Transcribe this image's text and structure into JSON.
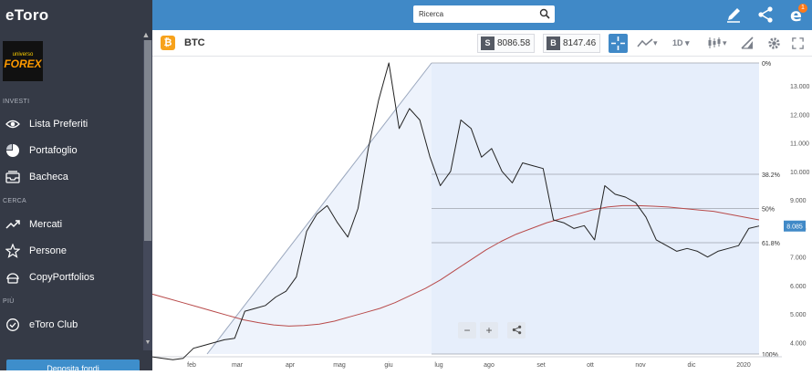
{
  "sidebar": {
    "logo": "eToro",
    "avatar_line1": "universo",
    "avatar_line2": "FOREX",
    "sections": {
      "invest": "INVESTI",
      "search": "CERCA",
      "more": "PIÙ"
    },
    "items": [
      {
        "label": "Lista Preferiti",
        "icon": "eye-icon"
      },
      {
        "label": "Portafoglio",
        "icon": "pie-chart-icon"
      },
      {
        "label": "Bacheca",
        "icon": "inbox-icon"
      },
      {
        "label": "Mercati",
        "icon": "trend-icon"
      },
      {
        "label": "Persone",
        "icon": "star-icon"
      },
      {
        "label": "CopyPortfolios",
        "icon": "copy-portfolio-icon"
      },
      {
        "label": "eToro Club",
        "icon": "club-icon"
      }
    ],
    "open_account_label": "Deposita fondi"
  },
  "topbar": {
    "search_placeholder": "Ricerca",
    "notification_count": "1"
  },
  "instrument": {
    "symbol": "BTC",
    "sell_label": "S",
    "sell_price": "8086.58",
    "buy_label": "B",
    "buy_price": "8147.46",
    "timeframe": "1D"
  },
  "chart_data": {
    "type": "line",
    "x_ticks": [
      "feb",
      "mar",
      "apr",
      "mag",
      "giu",
      "lug",
      "ago",
      "set",
      "ott",
      "nov",
      "dic",
      "2020"
    ],
    "y_ticks": [
      "13.000",
      "12.000",
      "11.000",
      "10.000",
      "9.000",
      "8.000",
      "7.000",
      "6.000",
      "5.000",
      "4.000"
    ],
    "ylim": [
      3600,
      13800
    ],
    "current_price_label": "8.085",
    "fib_levels": [
      {
        "label": "0%",
        "value": 13800
      },
      {
        "label": "38.2%",
        "value": 9900
      },
      {
        "label": "50%",
        "value": 8700
      },
      {
        "label": "61.8%",
        "value": 7500
      },
      {
        "label": "100%",
        "value": 3600
      }
    ],
    "series": [
      {
        "values": [
          3500,
          3450,
          3400,
          3450,
          3800,
          3900,
          4000,
          4100,
          4150,
          5100,
          5200,
          5300,
          5600,
          5800,
          6300,
          7900,
          8500,
          8800,
          8200,
          7700,
          8700,
          10800,
          12500,
          13800,
          11500,
          12200,
          11800,
          10500,
          9500,
          10000,
          11800,
          11500,
          10500,
          10800,
          10000,
          9600,
          10300,
          10200,
          10100,
          8300,
          8200,
          8000,
          8100,
          7600,
          9500,
          9200,
          9100,
          8900,
          8400,
          7600,
          7400,
          7200,
          7300,
          7200,
          7000,
          7200,
          7300,
          7400,
          8000,
          8085
        ]
      },
      {
        "values": [
          5700,
          5550,
          5400,
          5250,
          5100,
          4950,
          4800,
          4700,
          4620,
          4580,
          4600,
          4650,
          4750,
          4900,
          5050,
          5200,
          5400,
          5650,
          5900,
          6200,
          6550,
          6900,
          7250,
          7550,
          7800,
          8000,
          8200,
          8350,
          8500,
          8650,
          8750,
          8800,
          8800,
          8780,
          8750,
          8700,
          8650,
          8600,
          8500,
          8400,
          8300
        ]
      }
    ]
  },
  "zoom": {
    "minus": "−",
    "plus": "+"
  }
}
